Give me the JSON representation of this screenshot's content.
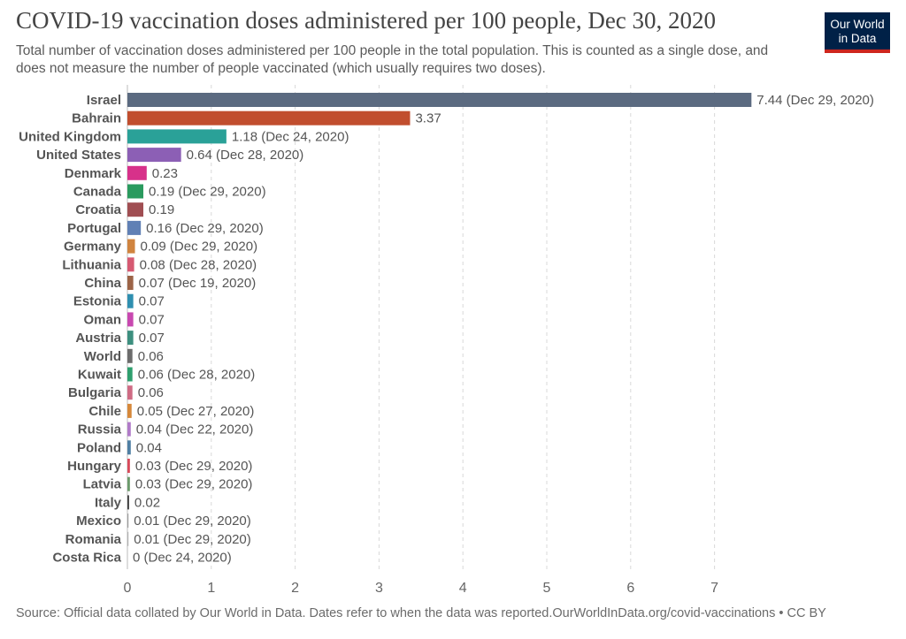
{
  "header": {
    "title": "COVID-19 vaccination doses administered per 100 people, Dec 30, 2020",
    "subtitle": "Total number of vaccination doses administered per 100 people in the total population. This is counted as a single dose, and does not measure the number of people vaccinated (which usually requires two doses).",
    "logo_line1": "Our World",
    "logo_line2": "in Data",
    "logo_bg": "#002147",
    "logo_accent": "#ce261e"
  },
  "footer": {
    "source": "Source: Official data collated by Our World in Data. Dates refer to when the data was reported.OurWorldInData.org/covid-vaccinations • CC BY"
  },
  "chart_data": {
    "type": "bar",
    "orientation": "horizontal",
    "xlim": [
      0,
      7.5
    ],
    "xticks": [
      0,
      1,
      2,
      3,
      4,
      5,
      6,
      7
    ],
    "grid": "vertical dashed",
    "categories": [
      "Israel",
      "Bahrain",
      "United Kingdom",
      "United States",
      "Denmark",
      "Canada",
      "Croatia",
      "Portugal",
      "Germany",
      "Lithuania",
      "China",
      "Estonia",
      "Oman",
      "Austria",
      "World",
      "Kuwait",
      "Bulgaria",
      "Chile",
      "Russia",
      "Poland",
      "Hungary",
      "Latvia",
      "Italy",
      "Mexico",
      "Romania",
      "Costa Rica"
    ],
    "values": [
      7.44,
      3.37,
      1.18,
      0.64,
      0.23,
      0.19,
      0.19,
      0.16,
      0.09,
      0.08,
      0.07,
      0.07,
      0.07,
      0.07,
      0.06,
      0.06,
      0.06,
      0.05,
      0.04,
      0.04,
      0.03,
      0.03,
      0.02,
      0.01,
      0.01,
      0
    ],
    "value_labels": [
      "7.44 (Dec 29, 2020)",
      "3.37",
      "1.18 (Dec 24, 2020)",
      "0.64 (Dec 28, 2020)",
      "0.23",
      "0.19 (Dec 29, 2020)",
      "0.19",
      "0.16 (Dec 29, 2020)",
      "0.09 (Dec 29, 2020)",
      "0.08 (Dec 28, 2020)",
      "0.07 (Dec 19, 2020)",
      "0.07",
      "0.07",
      "0.07",
      "0.06",
      "0.06 (Dec 28, 2020)",
      "0.06",
      "0.05 (Dec 27, 2020)",
      "0.04 (Dec 22, 2020)",
      "0.04",
      "0.03 (Dec 29, 2020)",
      "0.03 (Dec 29, 2020)",
      "0.02",
      "0.01 (Dec 29, 2020)",
      "0.01 (Dec 29, 2020)",
      "0 (Dec 24, 2020)"
    ],
    "colors": [
      "#5b6a80",
      "#c14e2e",
      "#2aa198",
      "#8c5fb5",
      "#d7318a",
      "#2a9a5e",
      "#a04e52",
      "#6080b5",
      "#d0843f",
      "#d65a72",
      "#9c6447",
      "#2f8fb0",
      "#c848b0",
      "#3d8f7f",
      "#6c6c6c",
      "#2f9f6e",
      "#cf6b84",
      "#d6883a",
      "#b07ac8",
      "#4f7fa3",
      "#d84a5a",
      "#6b9a6b",
      "#404040",
      "#9c9c9c",
      "#b0b0b0",
      "#bdbdbd"
    ]
  }
}
